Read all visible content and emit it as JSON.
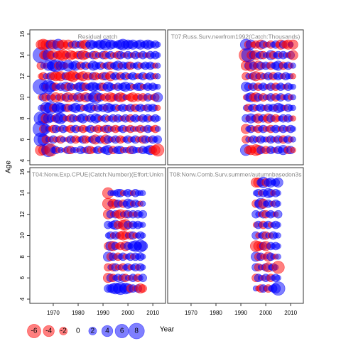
{
  "chart_data": [
    {
      "type": "bubble",
      "title": "Residual catch",
      "x": [
        1965,
        1966,
        1967,
        1968,
        1969,
        1970,
        1971,
        1972,
        1973,
        1974,
        1975,
        1976,
        1977,
        1978,
        1979,
        1980,
        1981,
        1982,
        1983,
        1984,
        1985,
        1986,
        1987,
        1988,
        1989,
        1990,
        1991,
        1992,
        1993,
        1994,
        1995,
        1996,
        1997,
        1998,
        1999,
        2000,
        2001,
        2002,
        2003,
        2004,
        2005,
        2006,
        2007,
        2008,
        2009,
        2010,
        2011,
        2012
      ],
      "y": [
        5,
        6,
        7,
        8,
        9,
        10,
        11,
        12,
        13,
        14,
        15
      ],
      "values": [
        [
          -4,
          -3,
          -2,
          6,
          -5,
          1,
          2,
          -1,
          1,
          0.5,
          -1,
          2,
          -2,
          1,
          1,
          -0.5,
          2,
          1,
          -1,
          2,
          -2,
          -1,
          1,
          2,
          -1,
          1,
          2,
          3,
          1,
          -2,
          1,
          2,
          2,
          -1,
          1,
          1,
          -2,
          2,
          1,
          1,
          -1,
          2,
          1,
          2,
          3,
          -2,
          -3,
          -5
        ],
        [
          6,
          4,
          -2,
          1,
          -1,
          2,
          -1,
          1,
          -2,
          1,
          0.5,
          -1,
          2,
          1,
          -2,
          -1,
          1,
          2,
          -2,
          -1,
          1,
          2,
          -3,
          1,
          2,
          -1,
          -3,
          2,
          1,
          -1,
          2,
          1,
          -2,
          -1,
          1,
          2,
          -1,
          1,
          2,
          -1,
          1,
          -2,
          2,
          1,
          -1,
          2,
          1,
          2
        ],
        [
          8,
          -2,
          3,
          1,
          -1,
          -2,
          2,
          1,
          -1,
          2,
          1,
          -1,
          -2,
          1,
          2,
          -1,
          1,
          -2,
          -1,
          1,
          2,
          -1,
          1,
          -2,
          -1,
          1,
          -2,
          2,
          -1,
          1,
          -2,
          -1,
          1,
          2,
          -1,
          1,
          -2,
          1,
          -1,
          1,
          -2,
          1,
          -1,
          2,
          1,
          -1,
          -2,
          1
        ],
        [
          6,
          4,
          -3,
          3,
          2,
          1,
          -2,
          3,
          4,
          2,
          -1,
          1,
          -2,
          2,
          1,
          -1,
          2,
          3,
          1,
          -1,
          2,
          1,
          3,
          2,
          -1,
          1,
          2,
          -1,
          1,
          2,
          -1,
          2,
          1,
          -1,
          2,
          1,
          -2,
          1,
          2,
          1,
          -1,
          2,
          1,
          2,
          -1,
          1,
          2,
          1
        ],
        [
          1,
          -1,
          4,
          3,
          5,
          -2,
          2,
          4,
          3,
          1,
          2,
          -2,
          1,
          2,
          3,
          1,
          2,
          -1,
          1,
          2,
          3,
          1,
          -1,
          2,
          1,
          2,
          -1,
          3,
          2,
          1,
          2,
          -1,
          1,
          2,
          1,
          -1,
          2,
          1,
          -2,
          1,
          2,
          1,
          -1,
          2,
          1,
          2,
          1,
          -1
        ],
        [
          -1,
          2,
          -2,
          -1,
          2,
          -1,
          -3,
          1,
          -2,
          -1,
          2,
          -3,
          1,
          -2,
          -1,
          3,
          -2,
          1,
          -3,
          2,
          -1,
          3,
          5,
          -2,
          2,
          -1,
          -2,
          1,
          -3,
          -2,
          -1,
          2,
          -3,
          -2,
          1,
          -1,
          -2,
          -3,
          -1,
          -2,
          1,
          -2,
          -1,
          2,
          -1,
          1,
          -2,
          3
        ],
        [
          8,
          2,
          -1,
          6,
          4,
          2,
          -2,
          1,
          2,
          -1,
          3,
          -2,
          2,
          1,
          -1,
          2,
          3,
          2,
          -2,
          1,
          2,
          3,
          2,
          1,
          2,
          -2,
          1,
          3,
          2,
          1,
          -1,
          2,
          1,
          2,
          3,
          1,
          2,
          -1,
          1,
          2,
          2,
          -1,
          1,
          2,
          1,
          2,
          1,
          1
        ],
        [
          -1,
          -2,
          1,
          -1,
          2,
          -2,
          -3,
          -2,
          -3,
          -1,
          2,
          -2,
          -3,
          -4,
          -2,
          1,
          -2,
          -3,
          1,
          -2,
          -1,
          2,
          -2,
          -1,
          1,
          -2,
          2,
          -1,
          -3,
          1,
          2,
          1,
          -2,
          1,
          2,
          -1,
          1,
          2,
          1,
          -1,
          1,
          2,
          -1,
          1,
          2,
          1,
          -1,
          1
        ],
        [
          -2,
          1,
          -1,
          3,
          2,
          4,
          5,
          -2,
          3,
          2,
          -1,
          4,
          1,
          2,
          3,
          1,
          -2,
          1,
          2,
          -1,
          1,
          3,
          2,
          1,
          2,
          -1,
          1,
          2,
          -2,
          1,
          2,
          3,
          -1,
          2,
          1,
          2,
          -2,
          1,
          1,
          2,
          -1,
          1,
          2,
          1,
          2,
          1,
          -1,
          1
        ],
        [
          8,
          -2,
          -3,
          4,
          -2,
          -3,
          1,
          -2,
          -3,
          -4,
          -2,
          1,
          -3,
          -2,
          -1,
          -2,
          2,
          -3,
          -2,
          1,
          -1,
          2,
          -2,
          1,
          -1,
          2,
          -2,
          1,
          2,
          -1,
          1,
          -2,
          2,
          1,
          -1,
          2,
          1,
          -1,
          2,
          1,
          -1,
          2,
          1,
          -1,
          2,
          1,
          2,
          1
        ],
        [
          -3,
          -4,
          -3,
          -2,
          3,
          -3,
          -2,
          4,
          -2,
          -3,
          -1,
          -3,
          1,
          -2,
          2,
          -1,
          2,
          -2,
          -3,
          1,
          3,
          2,
          1,
          2,
          3,
          2,
          4,
          1,
          3,
          2,
          1,
          2,
          3,
          4,
          2,
          3,
          2,
          3,
          1,
          2,
          3,
          1,
          2,
          3,
          2,
          1,
          2,
          1
        ]
      ],
      "xlim": [
        1960.6,
        2015.1
      ],
      "xticks": [
        1970,
        1980,
        1990,
        2000,
        2010
      ],
      "ylim": [
        3.6,
        16.4
      ],
      "yticks": [
        4,
        6,
        8,
        10,
        12,
        14,
        16
      ]
    },
    {
      "type": "bubble",
      "title": "T07:Russ.Surv.newfrom1992(Catch:Thousands)",
      "x": [
        1992,
        1993,
        1994,
        1995,
        1996,
        1997,
        1998,
        1999,
        2000,
        2001,
        2002,
        2003,
        2004,
        2005,
        2006,
        2007,
        2008,
        2009,
        2010,
        2011
      ],
      "y": [
        5,
        6,
        7,
        8,
        9,
        10,
        11,
        12,
        13,
        14,
        15
      ],
      "values": [
        [
          4,
          -2,
          -3,
          -1,
          -4,
          -3,
          2,
          1,
          -2,
          -1,
          2,
          1,
          -1,
          2,
          1,
          3,
          1,
          -2,
          2,
          -1
        ],
        [
          -2,
          1,
          -1,
          2,
          1,
          -1,
          2,
          1,
          1,
          -1,
          2,
          1,
          -1,
          2,
          1,
          -2,
          1,
          2,
          -1,
          1
        ],
        [
          -3,
          1,
          2,
          -1,
          1,
          -2,
          1,
          2,
          -1,
          1,
          -2,
          1,
          2,
          1,
          -1,
          2,
          1,
          -1,
          2,
          1
        ],
        [
          2,
          -1,
          3,
          1,
          2,
          -3,
          1,
          2,
          -1,
          -3,
          2,
          1,
          -2,
          -1,
          1,
          2,
          -1,
          2,
          1,
          -1
        ],
        [
          1,
          -2,
          1,
          2,
          -1,
          1,
          2,
          1,
          -1,
          2,
          1,
          2,
          -1,
          3,
          2,
          1,
          -1,
          2,
          1,
          1
        ],
        [
          -1,
          2,
          3,
          -2,
          -3,
          2,
          1,
          -2,
          1,
          -1,
          2,
          1,
          -2,
          1,
          2,
          -1,
          1,
          2,
          -1,
          1
        ],
        [
          3,
          2,
          -1,
          2,
          1,
          -2,
          1,
          2,
          1,
          -1,
          2,
          1,
          -2,
          1,
          2,
          1,
          -1,
          2,
          1,
          1
        ],
        [
          -2,
          1,
          -1,
          2,
          -3,
          1,
          -2,
          1,
          -1,
          2,
          1,
          -2,
          1,
          2,
          1,
          -1,
          2,
          1,
          1,
          -1
        ],
        [
          -3,
          2,
          -4,
          2,
          1,
          -3,
          2,
          -1,
          2,
          1,
          -2,
          1,
          2,
          3,
          1,
          -2,
          1,
          2,
          -1,
          1
        ],
        [
          -6,
          6,
          -2,
          2,
          -3,
          1,
          2,
          -2,
          1,
          -1,
          3,
          -2,
          1,
          2,
          -1,
          2,
          1,
          -1,
          2,
          -3
        ],
        [
          4,
          -2,
          3,
          -1,
          -2,
          1,
          -3,
          2,
          -1,
          1,
          -2,
          1,
          2,
          -1,
          -3,
          2,
          -2,
          -3,
          1,
          -3
        ]
      ],
      "xlim": [
        1960.6,
        2015.1
      ],
      "xticks": [
        1970,
        1980,
        1990,
        2000,
        2010
      ],
      "ylim": [
        3.6,
        16.4
      ],
      "yticks": [
        4,
        6,
        8,
        10,
        12,
        14,
        16
      ]
    },
    {
      "type": "bubble",
      "title": "T04:Norw.Exp.CPUE(Catch:Number)(Effort:Unkn",
      "x": [
        1992,
        1993,
        1994,
        1995,
        1996,
        1997,
        1998,
        1999,
        2000,
        2001,
        2002,
        2003,
        2004,
        2005,
        2006
      ],
      "y": [
        5,
        6,
        7,
        8,
        9,
        10,
        11,
        12,
        13,
        14
      ],
      "values": [
        [
          2,
          2,
          3,
          4,
          3,
          5,
          2,
          4,
          3,
          -2,
          2,
          -1,
          2,
          -3,
          -2
        ],
        [
          -3,
          2,
          -2,
          1,
          2,
          -1,
          2,
          -2,
          1,
          -1,
          2,
          1,
          -2,
          1,
          2
        ],
        [
          -2,
          1,
          -2,
          2,
          -1,
          1,
          -2,
          1,
          2,
          -1,
          1,
          2,
          -1,
          2,
          1
        ],
        [
          3,
          -2,
          2,
          1,
          -2,
          1,
          2,
          -1,
          1,
          2,
          -1,
          2,
          1,
          2,
          1
        ],
        [
          -2,
          3,
          -3,
          2,
          -1,
          -2,
          1,
          -3,
          2,
          1,
          3,
          4,
          2,
          5,
          3
        ],
        [
          1,
          2,
          -1,
          2,
          1,
          -2,
          -3,
          -2,
          1,
          -2,
          2,
          -1,
          1,
          2,
          1
        ],
        [
          2,
          1,
          2,
          3,
          -2,
          1,
          -3,
          -4,
          2,
          -1,
          2,
          1,
          2,
          1,
          1
        ],
        [
          -3,
          2,
          -1,
          2,
          -2,
          -3,
          1,
          -2,
          2,
          -1,
          2,
          -1,
          2,
          1,
          2
        ],
        [
          -4,
          1,
          -3,
          -2,
          2,
          1,
          -2,
          1,
          3,
          2,
          -1,
          2,
          1,
          -1,
          1
        ],
        [
          -4,
          1,
          1,
          1,
          2,
          2,
          -1,
          1,
          2,
          1,
          -1,
          2,
          1,
          1,
          1
        ]
      ],
      "xlim": [
        1960.6,
        2015.1
      ],
      "xticks": [
        1970,
        1980,
        1990,
        2000,
        2010
      ],
      "ylim": [
        3.6,
        16.4
      ],
      "yticks": [
        4,
        6,
        8,
        10,
        12,
        14,
        16
      ]
    },
    {
      "type": "bubble",
      "title": "T08:Norw.Comb.Surv.summer/autumnbasedon3s",
      "x": [
        1996,
        1997,
        1998,
        1999,
        2000,
        2001,
        2002,
        2003,
        2004,
        2005
      ],
      "y": [
        5,
        6,
        7,
        8,
        9,
        10,
        11,
        12,
        13,
        14,
        15
      ],
      "values": [
        [
          1,
          -1,
          -2,
          2,
          1,
          -2,
          1,
          2,
          3,
          6
        ],
        [
          -2,
          2,
          1,
          -1,
          2,
          1,
          -2,
          1,
          2,
          1
        ],
        [
          2,
          -2,
          1,
          -1,
          2,
          -3,
          1,
          2,
          1,
          -5
        ],
        [
          3,
          -2,
          2,
          -1,
          1,
          -3,
          2,
          1,
          -1,
          1
        ],
        [
          -4,
          -3,
          -2,
          2,
          -3,
          -1,
          2,
          1,
          2,
          1
        ],
        [
          2,
          -1,
          1,
          2,
          -2,
          1,
          -1,
          2,
          1,
          1
        ],
        [
          -1,
          2,
          1,
          -2,
          1,
          2,
          -1,
          1,
          2,
          1
        ],
        [
          2,
          1,
          -1,
          2,
          -2,
          1,
          2,
          1,
          -1,
          2
        ],
        [
          -2,
          2,
          4,
          -3,
          1,
          2,
          1,
          -1,
          2,
          1
        ],
        [
          1,
          2,
          -1,
          2,
          1,
          3,
          2,
          -1,
          2,
          1
        ],
        [
          -3,
          -3,
          2,
          4,
          -2,
          2,
          3,
          1,
          2,
          3
        ]
      ],
      "xlim": [
        1960.6,
        2015.1
      ],
      "xticks": [
        1970,
        1980,
        1990,
        2000,
        2010
      ],
      "ylim": [
        3.6,
        16.4
      ],
      "yticks": [
        4,
        6,
        8,
        10,
        12,
        14,
        16
      ]
    }
  ],
  "xlabel": "Year",
  "ylabel": "Age",
  "colors": {
    "negative": "#ff0000",
    "positive": "#0000ff"
  },
  "legend": {
    "values": [
      -6,
      -4,
      -2,
      0,
      2,
      4,
      6,
      8
    ]
  }
}
